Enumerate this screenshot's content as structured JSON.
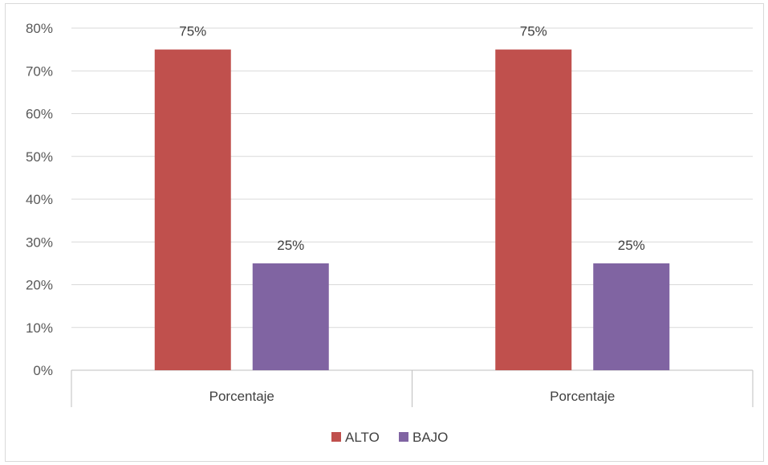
{
  "chart_data": {
    "type": "bar",
    "categories": [
      "Porcentaje",
      "Porcentaje"
    ],
    "series": [
      {
        "name": "ALTO",
        "values": [
          0.75,
          0.75
        ],
        "color": "#c0504d",
        "labels": [
          "75%",
          "75%"
        ]
      },
      {
        "name": "BAJO",
        "values": [
          0.25,
          0.25
        ],
        "color": "#8064a2",
        "labels": [
          "25%",
          "25%"
        ]
      }
    ],
    "ylim": [
      0,
      0.8
    ],
    "yticks": [
      {
        "value": 0.0,
        "label": "0%"
      },
      {
        "value": 0.1,
        "label": "10%"
      },
      {
        "value": 0.2,
        "label": "20%"
      },
      {
        "value": 0.3,
        "label": "30%"
      },
      {
        "value": 0.4,
        "label": "40%"
      },
      {
        "value": 0.5,
        "label": "50%"
      },
      {
        "value": 0.6,
        "label": "60%"
      },
      {
        "value": 0.7,
        "label": "70%"
      },
      {
        "value": 0.8,
        "label": "80%"
      }
    ],
    "grid": true,
    "legend_position": "bottom",
    "gridline_color": "#d9d9d9",
    "axis_color": "#bfbfbf"
  }
}
